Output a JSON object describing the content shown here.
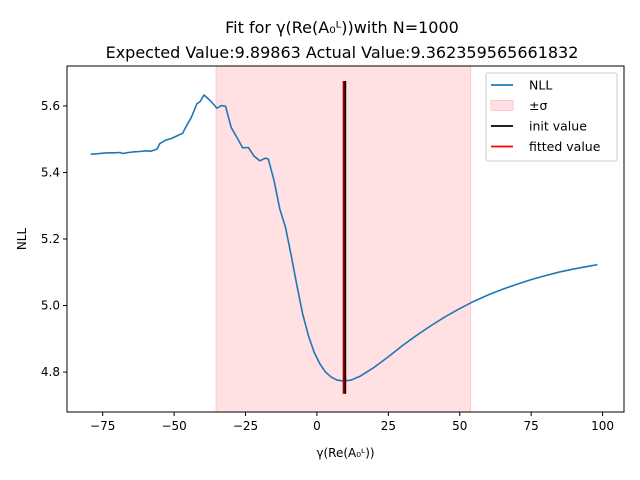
{
  "chart_data": {
    "type": "line",
    "title_line1": "Fit for γ(Re(A₀ᴸ))with N=1000",
    "title_line2": "Expected Value:9.89863 Actual Value:9.362359565661832",
    "xlabel": "γ(Re(A₀ᴸ))",
    "ylabel": "NLL",
    "xlim": [
      -87.5,
      107.5
    ],
    "ylim": [
      4.68,
      5.72
    ],
    "xticks": [
      -75,
      -50,
      -25,
      0,
      25,
      50,
      75,
      100
    ],
    "xtick_labels": [
      "−75",
      "−50",
      "−25",
      "0",
      "25",
      "50",
      "75",
      "100"
    ],
    "yticks": [
      4.8,
      5.0,
      5.2,
      5.4,
      5.6
    ],
    "ytick_labels": [
      "4.8",
      "5.0",
      "5.2",
      "5.4",
      "5.6"
    ],
    "sigma_band": [
      -35.3,
      53.8
    ],
    "init_value": 9.89863,
    "fitted_value": 9.362359565661832,
    "vline_range": [
      4.735,
      5.675
    ],
    "series": [
      {
        "name": "NLL",
        "color": "#1f77b4",
        "x": [
          -79.2,
          -77,
          -75,
          -73,
          -71,
          -69,
          -68,
          -66,
          -64,
          -62,
          -60,
          -58,
          -56,
          -55,
          -53,
          -51,
          -49,
          -47,
          -46,
          -44,
          -42,
          -41,
          -39.5,
          -38.5,
          -37,
          -35,
          -33.5,
          -32,
          -30,
          -28,
          -26,
          -24,
          -22,
          -20,
          -18,
          -17,
          -15,
          -13,
          -11,
          -9,
          -7,
          -5,
          -3,
          -1,
          1,
          3,
          5,
          7,
          9.4,
          12,
          15,
          20,
          25,
          30,
          35,
          40,
          45,
          50,
          55,
          60,
          65,
          70,
          75,
          80,
          85,
          90,
          95,
          98.2
        ],
        "y": [
          5.455,
          5.456,
          5.458,
          5.459,
          5.459,
          5.46,
          5.457,
          5.46,
          5.462,
          5.463,
          5.465,
          5.464,
          5.47,
          5.487,
          5.497,
          5.502,
          5.51,
          5.518,
          5.535,
          5.565,
          5.607,
          5.612,
          5.633,
          5.625,
          5.613,
          5.593,
          5.601,
          5.599,
          5.535,
          5.505,
          5.474,
          5.475,
          5.449,
          5.435,
          5.443,
          5.44,
          5.375,
          5.29,
          5.235,
          5.15,
          5.06,
          4.975,
          4.91,
          4.86,
          4.825,
          4.8,
          4.785,
          4.776,
          4.773,
          4.776,
          4.787,
          4.814,
          4.846,
          4.88,
          4.911,
          4.94,
          4.967,
          4.991,
          5.013,
          5.032,
          5.049,
          5.064,
          5.078,
          5.09,
          5.101,
          5.11,
          5.118,
          5.123
        ]
      }
    ],
    "legend": {
      "placement": "top-right",
      "entries": [
        {
          "label": "NLL",
          "kind": "line",
          "color": "#1f77b4"
        },
        {
          "label": "±σ",
          "kind": "patch",
          "color": "#ffe0e3"
        },
        {
          "label": "init value",
          "kind": "line",
          "color": "#000000"
        },
        {
          "label": "fitted value",
          "kind": "line",
          "color": "#ff0000"
        }
      ]
    },
    "colors": {
      "band": "#ffe0e3",
      "band_edge": "#ffc8cd",
      "init": "#000000",
      "fitted": "#ff0000",
      "fitted_overlap": "#a00000"
    }
  }
}
